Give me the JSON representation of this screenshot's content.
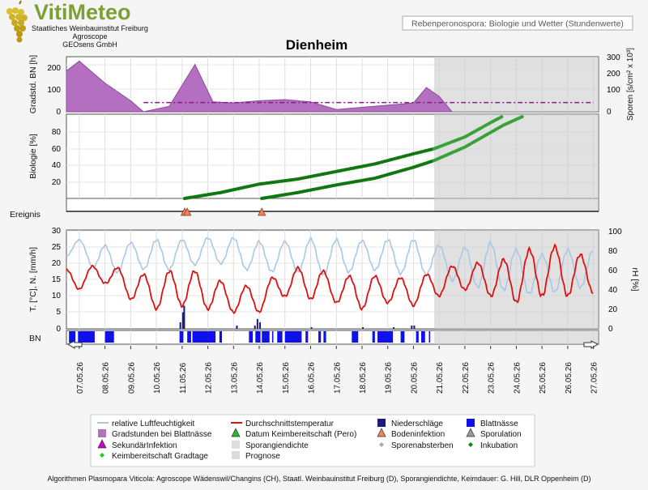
{
  "brand": {
    "logo_text": "VitiMeteo",
    "org_line1": "Staatliches Weinbauinstitut Freiburg",
    "org_line2": "Agroscope",
    "org_line3": "GEOsens GmbH"
  },
  "header": {
    "subtitle": "Rebenperonospora: Biologie und Wetter (Stundenwerte)",
    "location": "Dienheim"
  },
  "panels": {
    "gradstunden": {
      "ylabel": "Gradstd. BN [h]",
      "yticks": [
        "0",
        "100",
        "200"
      ]
    },
    "sporen": {
      "ylabel": "Sporen [s/cm² x 10³]",
      "yticks": [
        "0",
        "100",
        "200",
        "300"
      ]
    },
    "biologie": {
      "ylabel": "Biologie [%]",
      "yticks": [
        "20",
        "40",
        "60",
        "80"
      ]
    },
    "ereignis": {
      "label": "Ereignis"
    },
    "weather": {
      "ylabel": "T. [°C], N. [mm/h]",
      "yticks": [
        "0",
        "5",
        "10",
        "15",
        "20",
        "25",
        "30"
      ]
    },
    "humidity": {
      "ylabel": "rH [%]",
      "yticks": [
        "0",
        "20",
        "40",
        "60",
        "80",
        "100"
      ]
    },
    "bn": {
      "label": "BN"
    }
  },
  "dates": [
    "07.05.26",
    "08.05.26",
    "09.05.26",
    "10.05.26",
    "11.05.26",
    "12.05.26",
    "13.05.26",
    "14.05.26",
    "15.05.26",
    "16.05.26",
    "17.05.26",
    "18.05.26",
    "19.05.26",
    "20.05.26",
    "21.05.26",
    "22.05.26",
    "23.05.26",
    "24.05.26",
    "25.05.26",
    "26.05.26",
    "27.05.26"
  ],
  "legend": [
    {
      "label": "relative Luftfeuchtigkeit",
      "symbol": "line",
      "color": "#a8c8e6"
    },
    {
      "label": "Durchschnittstemperatur",
      "symbol": "line",
      "color": "#e01010"
    },
    {
      "label": "Niederschläge",
      "symbol": "square",
      "color": "#1a1a80"
    },
    {
      "label": "Blattnässe",
      "symbol": "square",
      "color": "#1010ee"
    },
    {
      "label": "Gradstunden bei Blattnässe",
      "symbol": "square",
      "color": "#b46fc0"
    },
    {
      "label": "Datum Keimbereitschaft (Pero)",
      "symbol": "triangle",
      "color": "#22bb22"
    },
    {
      "label": "Bodeninfektion",
      "symbol": "triangle",
      "color": "#f08060"
    },
    {
      "label": "Sporulation",
      "symbol": "triangle",
      "color": "#999999"
    },
    {
      "label": "SekundärInfektion",
      "symbol": "triangle",
      "color": "#cc00cc"
    },
    {
      "label": "Sporangiendichte",
      "symbol": "square",
      "color": "#dddddd"
    },
    {
      "label": "Sporenabsterben",
      "symbol": "diamond",
      "color": "#aaaaaa"
    },
    {
      "label": "Inkubation",
      "symbol": "diamond",
      "color": "#118811"
    },
    {
      "label": "Keimbereitschaft Gradtage",
      "symbol": "diamond",
      "color": "#22cc22"
    },
    {
      "label": "Prognose",
      "symbol": "square",
      "color": "#dcdcdc"
    }
  ],
  "footer": {
    "text": "Algorithmen Plasmopara Viticola: Agroscope Wädenswil/Changins (CH), Staatl. Weinbauinstitut Freiburg (D), Sporangiendichte, Keimdauer: G. Hill, DLR Oppenheim (D)"
  },
  "chart_data": {
    "type": "line",
    "x_unit": "day of May 2026",
    "x_range": [
      6.5,
      27.2
    ],
    "prognose_start": 20.8,
    "gradstunden": {
      "type": "area",
      "ylim": [
        0,
        250
      ],
      "x": [
        6.5,
        7.0,
        8.0,
        9.0,
        9.5,
        10.5,
        11.5,
        12.2,
        13.0,
        14.0,
        15.0,
        16.0,
        17.0,
        18.0,
        19.0,
        20.0,
        20.5,
        21.0,
        21.5
      ],
      "y": [
        185,
        230,
        130,
        50,
        0,
        25,
        215,
        45,
        40,
        50,
        55,
        45,
        10,
        20,
        30,
        40,
        110,
        70,
        0
      ],
      "spore_threshold": {
        "value": 50,
        "x_range": [
          9.5,
          27.0
        ],
        "unit": "s/cm² x 10³"
      }
    },
    "biologie": {
      "type": "scatter",
      "ylim": [
        0,
        100
      ],
      "series": [
        {
          "x": [
            11.1,
            12.5,
            14.0,
            15.5,
            17.0,
            18.5,
            20.0,
            20.8,
            22.0,
            23.0,
            23.5
          ],
          "y": [
            0,
            7,
            17,
            23,
            32,
            41,
            53,
            59,
            73,
            90,
            98
          ]
        },
        {
          "x": [
            14.1,
            15.5,
            17.0,
            18.5,
            20.0,
            20.8,
            22.0,
            23.5,
            24.3
          ],
          "y": [
            0,
            7,
            16,
            24,
            37,
            45,
            61,
            87,
            98
          ]
        }
      ]
    },
    "ereignis": {
      "bodeninfektion": [
        11.1,
        11.2,
        14.1
      ]
    },
    "temperature": {
      "ylim": [
        0,
        30
      ],
      "unit": "°C",
      "base": [
        15,
        17,
        13,
        11,
        13,
        11,
        9,
        9,
        14,
        14,
        12,
        11,
        12,
        11,
        14,
        16,
        15,
        15,
        18,
        17,
        16
      ],
      "amplitude": [
        3,
        3,
        4,
        5,
        6,
        5,
        4,
        4,
        4,
        5,
        4,
        5,
        4,
        4,
        4,
        4,
        5,
        7,
        8,
        7,
        5
      ]
    },
    "humidity": {
      "ylim": [
        0,
        100
      ],
      "unit": "%",
      "base": [
        82,
        68,
        75,
        74,
        76,
        80,
        78,
        72,
        74,
        73,
        72,
        75,
        74,
        72,
        70,
        62,
        65,
        58,
        55,
        60,
        62
      ],
      "amplitude": [
        8,
        16,
        12,
        16,
        14,
        12,
        14,
        16,
        14,
        18,
        18,
        14,
        16,
        18,
        14,
        20,
        22,
        22,
        20,
        20,
        18
      ]
    },
    "niederschlag": {
      "unit": "mm/h",
      "x": [
        10.9,
        11.0,
        11.05,
        13.1,
        13.8,
        13.9,
        14.0,
        16.0,
        18.0,
        19.2,
        19.9,
        20.0
      ],
      "y": [
        2,
        5,
        7,
        1,
        1,
        3,
        2,
        0.5,
        0.5,
        0.5,
        1,
        1
      ]
    },
    "blattnaesse": {
      "intervals": [
        [
          6.6,
          6.85
        ],
        [
          6.95,
          7.6
        ],
        [
          8.0,
          8.35
        ],
        [
          10.9,
          11.05
        ],
        [
          11.2,
          11.35
        ],
        [
          11.4,
          12.3
        ],
        [
          12.45,
          12.55
        ],
        [
          13.6,
          13.75
        ],
        [
          13.85,
          14.05
        ],
        [
          14.1,
          14.4
        ],
        [
          14.5,
          14.55
        ],
        [
          14.7,
          14.9
        ],
        [
          15.0,
          15.65
        ],
        [
          15.8,
          15.9
        ],
        [
          16.3,
          16.4
        ],
        [
          16.5,
          16.6
        ],
        [
          17.6,
          17.85
        ],
        [
          18.4,
          18.5
        ],
        [
          18.6,
          19.2
        ],
        [
          19.5,
          19.65
        ],
        [
          20.1,
          20.2
        ],
        [
          20.3,
          20.45
        ],
        [
          20.6,
          20.65
        ]
      ]
    }
  }
}
